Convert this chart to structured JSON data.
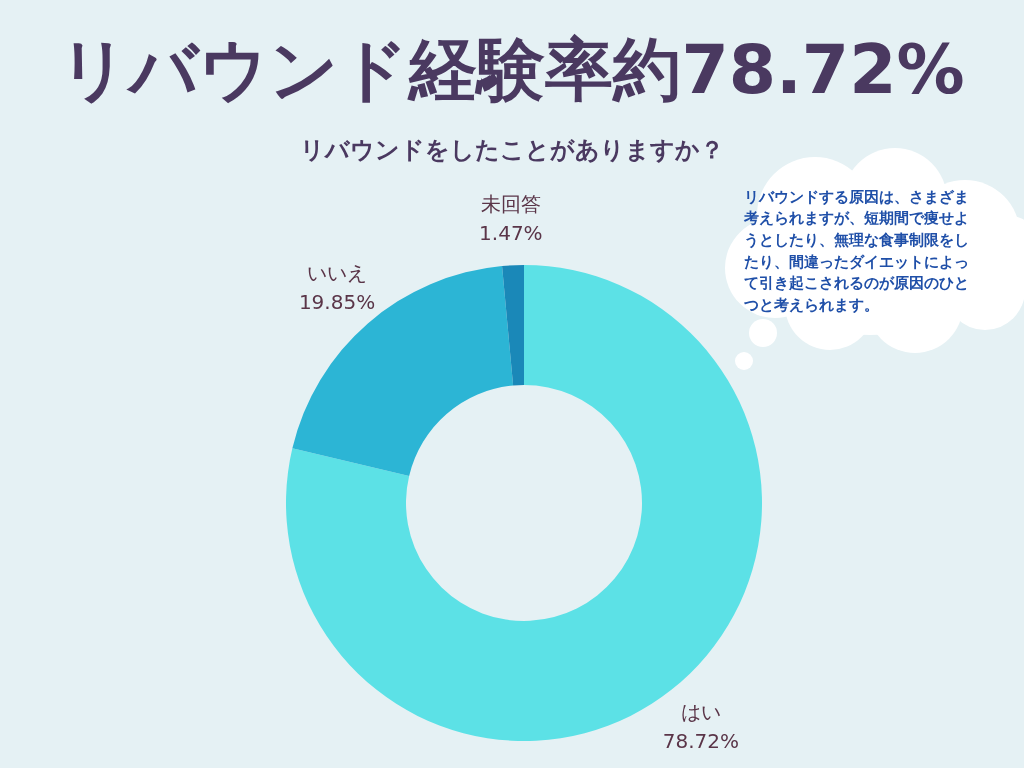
{
  "chart_data": {
    "type": "donut",
    "title": "リバウンド経験率約78.72%",
    "subtitle": "リバウンドをしたことがありますか？",
    "categories": [
      "はい",
      "いいえ",
      "未回答"
    ],
    "values": [
      78.72,
      19.85,
      1.47
    ],
    "colors": [
      "#5ce1e6",
      "#2cb5d5",
      "#1a88b8"
    ],
    "value_labels": [
      "78.72%",
      "19.85%",
      "1.47%"
    ],
    "annotations": [
      "リバウンドする原因は、さまざま考えられますが、短期間で痩せようとしたり、無理な食事制限をしたり、間違ったダイエットによって引き起こされるのが原因のひとつと考えられます。"
    ]
  }
}
